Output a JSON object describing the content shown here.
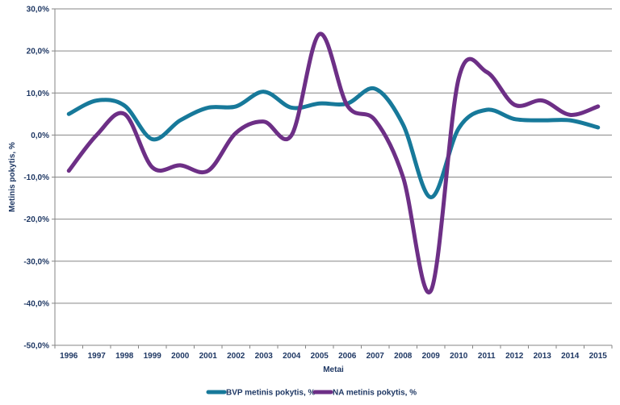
{
  "chart_data": {
    "type": "line",
    "categories": [
      "1996",
      "1997",
      "1998",
      "1999",
      "2000",
      "2001",
      "2002",
      "2003",
      "2004",
      "2005",
      "2006",
      "2007",
      "2008",
      "2009",
      "2010",
      "2011",
      "2012",
      "2013",
      "2014",
      "2015"
    ],
    "series": [
      {
        "name": "BVP metinis pokytis, %",
        "color": "#17799a",
        "values": [
          5.0,
          8.2,
          7.0,
          -1.0,
          3.5,
          6.5,
          6.8,
          10.3,
          6.5,
          7.5,
          7.5,
          11.0,
          2.5,
          -14.8,
          1.6,
          6.0,
          3.8,
          3.5,
          3.5,
          1.8
        ]
      },
      {
        "name": "NA metinis pokytis, %",
        "color": "#6d2f86",
        "values": [
          -8.5,
          0.0,
          5.0,
          -7.7,
          -7.2,
          -8.5,
          0.5,
          3.2,
          0.0,
          24.0,
          7.0,
          3.5,
          -10.0,
          -37.0,
          13.5,
          15.0,
          7.2,
          8.2,
          4.8,
          6.8
        ]
      }
    ],
    "xlabel": "Metai",
    "ylabel": "Metinis pokytis, %",
    "ylim": [
      -50,
      30
    ],
    "yticks": [
      30,
      20,
      10,
      0,
      -10,
      -20,
      -30,
      -40,
      -50
    ],
    "ytick_labels": [
      "30,0%",
      "20,0%",
      "10,0%",
      "0,0%",
      "-10,0%",
      "-20,0%",
      "-30,0%",
      "-40,0%",
      "-50,0%"
    ],
    "grid": "horizontal",
    "legend_position": "bottom"
  }
}
